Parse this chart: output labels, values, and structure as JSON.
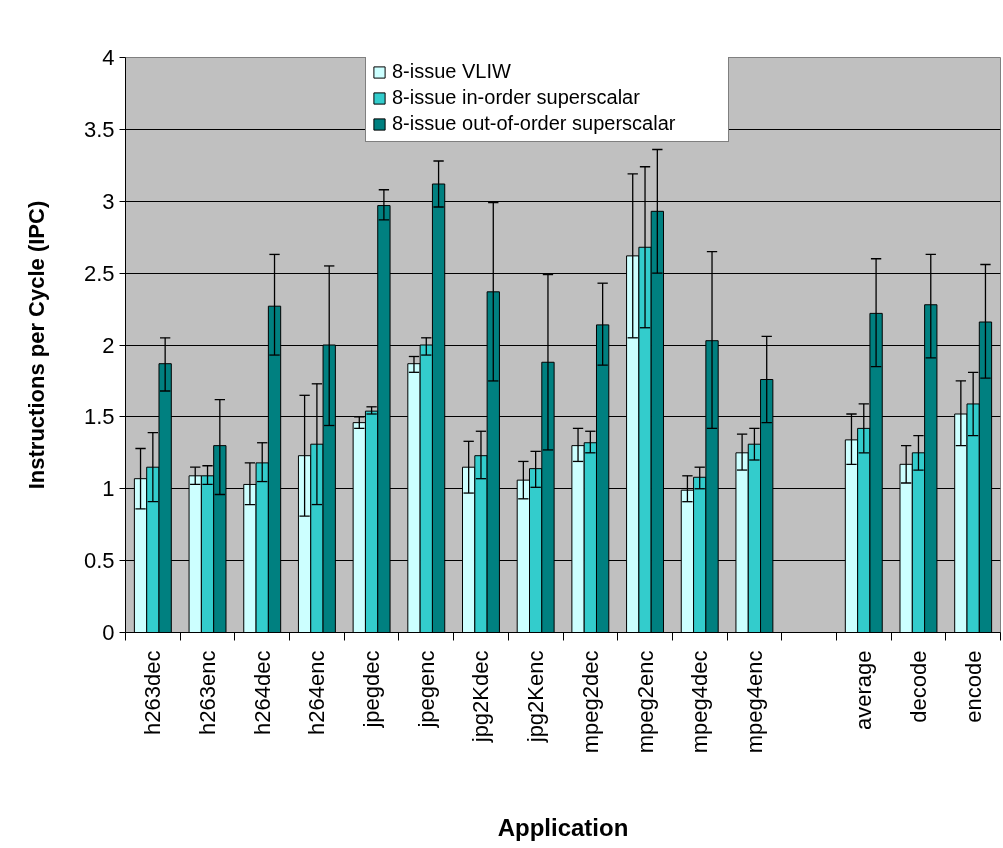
{
  "chart_data": {
    "type": "bar",
    "xlabel": "Application",
    "ylabel": "Instructions per Cycle (IPC)",
    "categories": [
      "h263dec",
      "h263enc",
      "h264dec",
      "h264enc",
      "jpegdec",
      "jpegenc",
      "jpg2Kdec",
      "jpg2Kenc",
      "mpeg2dec",
      "mpeg2enc",
      "mpeg4dec",
      "mpeg4enc",
      null,
      "average",
      "decode",
      "encode"
    ],
    "series": [
      {
        "name": "8-issue VLIW",
        "color": "#ccffff",
        "values": [
          1.07,
          1.09,
          1.03,
          1.23,
          1.46,
          1.87,
          1.15,
          1.06,
          1.3,
          2.62,
          0.99,
          1.25,
          null,
          1.34,
          1.17,
          1.52
        ],
        "errors": [
          [
            0.86,
            1.28
          ],
          [
            1.03,
            1.15
          ],
          [
            0.89,
            1.18
          ],
          [
            0.81,
            1.65
          ],
          [
            1.42,
            1.5
          ],
          [
            1.81,
            1.92
          ],
          [
            0.97,
            1.33
          ],
          [
            0.93,
            1.19
          ],
          [
            1.19,
            1.42
          ],
          [
            2.05,
            3.19
          ],
          [
            0.91,
            1.09
          ],
          [
            1.13,
            1.38
          ],
          null,
          [
            1.17,
            1.52
          ],
          [
            1.04,
            1.3
          ],
          [
            1.3,
            1.75
          ]
        ]
      },
      {
        "name": "8-issue in-order superscalar",
        "color": "#33cccc",
        "values": [
          1.15,
          1.09,
          1.18,
          1.31,
          1.54,
          2.0,
          1.23,
          1.14,
          1.32,
          2.68,
          1.08,
          1.31,
          null,
          1.42,
          1.25,
          1.59
        ],
        "errors": [
          [
            0.91,
            1.39
          ],
          [
            1.03,
            1.16
          ],
          [
            1.05,
            1.32
          ],
          [
            0.89,
            1.73
          ],
          [
            1.52,
            1.57
          ],
          [
            1.93,
            2.05
          ],
          [
            1.07,
            1.4
          ],
          [
            1.01,
            1.26
          ],
          [
            1.25,
            1.4
          ],
          [
            2.12,
            3.24
          ],
          [
            1.0,
            1.15
          ],
          [
            1.2,
            1.42
          ],
          null,
          [
            1.25,
            1.59
          ],
          [
            1.13,
            1.37
          ],
          [
            1.37,
            1.81
          ]
        ]
      },
      {
        "name": "8-issue out-of-order superscalar",
        "color": "#008080",
        "values": [
          1.87,
          1.3,
          2.27,
          2.0,
          2.97,
          3.12,
          2.37,
          1.88,
          2.14,
          2.93,
          2.03,
          1.76,
          null,
          2.22,
          2.28,
          2.16
        ],
        "errors": [
          [
            1.68,
            2.05
          ],
          [
            0.96,
            1.62
          ],
          [
            1.93,
            2.63
          ],
          [
            1.44,
            2.55
          ],
          [
            2.87,
            3.08
          ],
          [
            2.96,
            3.28
          ],
          [
            1.75,
            2.99
          ],
          [
            1.27,
            2.49
          ],
          [
            1.86,
            2.43
          ],
          [
            2.5,
            3.36
          ],
          [
            1.42,
            2.65
          ],
          [
            1.46,
            2.06
          ],
          null,
          [
            1.85,
            2.6
          ],
          [
            1.91,
            2.63
          ],
          [
            1.77,
            2.56
          ]
        ]
      }
    ],
    "ylim": [
      0,
      4
    ],
    "yticks": [
      0,
      0.5,
      1,
      1.5,
      2,
      2.5,
      3,
      3.5,
      4
    ],
    "grid": "y",
    "legend": "top"
  }
}
